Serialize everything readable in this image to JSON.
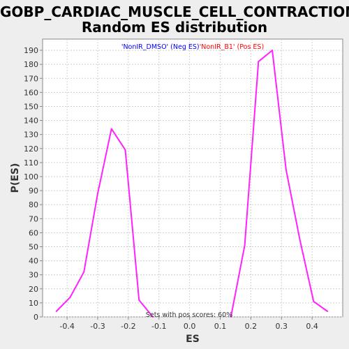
{
  "chart_data": {
    "type": "line",
    "title": [
      "GOBP_CARDIAC_MUSCLE_CELL_CONTRACTION:",
      "Random ES distribution"
    ],
    "xlabel": "ES",
    "ylabel": "P(ES)",
    "xlim": [
      -0.48,
      0.5
    ],
    "ylim": [
      0,
      198
    ],
    "xticks": [
      -0.4,
      -0.3,
      -0.2,
      -0.1,
      0.0,
      0.1,
      0.2,
      0.3,
      0.4
    ],
    "xtick_labels": [
      "-0.4",
      "-0.3",
      "-0.2",
      "-0.1",
      "0.0",
      "0.1",
      "0.2",
      "0.3",
      "0.4"
    ],
    "yticks": [
      0,
      10,
      20,
      30,
      40,
      50,
      60,
      70,
      80,
      90,
      100,
      110,
      120,
      130,
      140,
      150,
      160,
      170,
      180,
      190
    ],
    "grid": true,
    "legend_placement": "top-center",
    "legend": [
      {
        "label": "'NonIR_DMSO' (Neg ES)",
        "color": "#0000ff"
      },
      {
        "label": "'NonIR_B1' (Pos ES)",
        "color": "#ff0000"
      }
    ],
    "annotation": "Sets with pos scores: 60%",
    "series": [
      {
        "color": "#ff22ff",
        "points": [
          [
            -0.435,
            4
          ],
          [
            -0.39,
            14
          ],
          [
            -0.345,
            32
          ],
          [
            -0.3,
            88
          ],
          [
            -0.255,
            134
          ],
          [
            -0.21,
            119
          ],
          [
            -0.165,
            12
          ],
          [
            -0.12,
            0
          ]
        ]
      },
      {
        "color": "#ff22ff",
        "points": [
          [
            0.135,
            0
          ],
          [
            0.18,
            51
          ],
          [
            0.225,
            182
          ],
          [
            0.27,
            190
          ],
          [
            0.315,
            105
          ],
          [
            0.36,
            55
          ],
          [
            0.405,
            11
          ],
          [
            0.45,
            4
          ]
        ]
      }
    ]
  }
}
